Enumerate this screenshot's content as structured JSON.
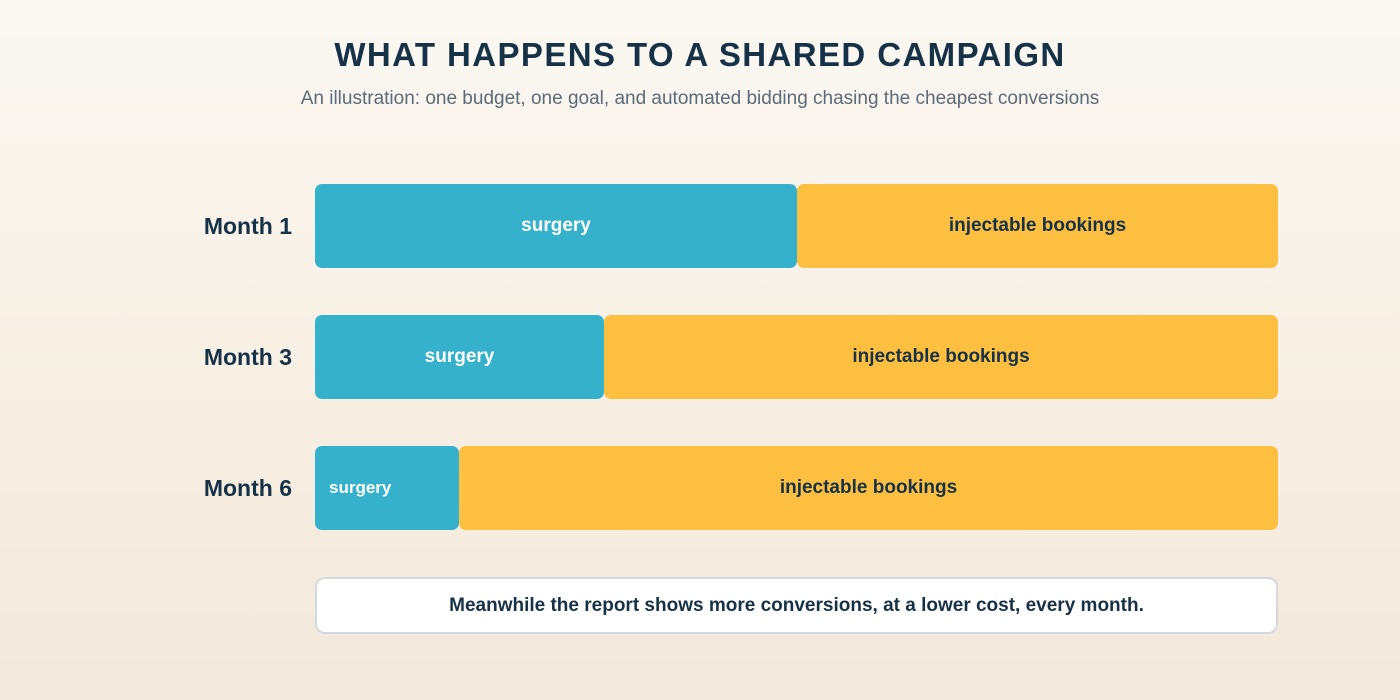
{
  "title": "WHAT HAPPENS TO A SHARED CAMPAIGN",
  "subtitle": "An illustration: one budget, one goal, and automated bidding chasing the cheapest conversions",
  "note": "Meanwhile the report shows more conversions, at a lower cost, every month.",
  "colors": {
    "surgery": "#35b1cc",
    "injectable_bookings": "#fdbf40",
    "text_dark": "#173247"
  },
  "chart_data": {
    "type": "bar",
    "orientation": "horizontal",
    "stacked": true,
    "normalized": true,
    "title": "WHAT HAPPENS TO A SHARED CAMPAIGN",
    "subtitle": "An illustration: one budget, one goal, and automated bidding chasing the cheapest conversions",
    "categories": [
      "Month 1",
      "Month 3",
      "Month 6"
    ],
    "series": [
      {
        "name": "surgery",
        "values": [
          0.5,
          0.3,
          0.15
        ]
      },
      {
        "name": "injectable bookings",
        "values": [
          0.5,
          0.7,
          0.85
        ]
      }
    ],
    "legend": "none (labels inside segments)",
    "grid": false,
    "annotation": "Meanwhile the report shows more conversions, at a lower cost, every month."
  }
}
